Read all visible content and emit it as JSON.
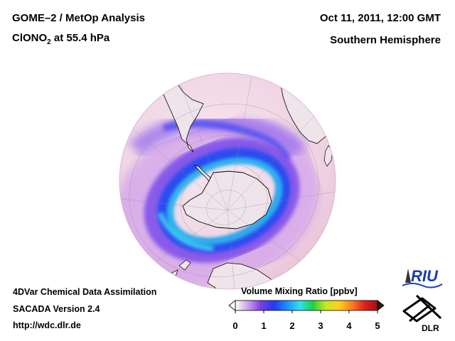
{
  "header": {
    "title_line1": "GOME–2 / MetOp Analysis",
    "species_prefix": "ClONO",
    "species_sub": "2",
    "species_suffix": " at 55.4 hPa",
    "datetime": "Oct 11, 2011, 12:00 GMT",
    "region": "Southern Hemisphere"
  },
  "footer": {
    "line1": "4DVar Chemical Data Assimilation",
    "line2": "SACADA Version 2.4",
    "line3": "http://wdc.dlr.de"
  },
  "colorbar": {
    "title": "Volume Mixing Ratio [ppbv]",
    "ticks": [
      "0",
      "1",
      "2",
      "3",
      "4",
      "5"
    ],
    "min": 0,
    "max": 5,
    "colors": [
      "#ffffff",
      "#c8a0e6",
      "#7a3ce8",
      "#1e3cf0",
      "#1e90ff",
      "#30e0f0",
      "#20d040",
      "#c8e820",
      "#ffd020",
      "#ff8020",
      "#e02020",
      "#a01010"
    ]
  },
  "logos": {
    "riu": "RIU",
    "dlr": "DLR"
  },
  "colors": {
    "globe_background": "#f3dde8",
    "vortex_blue": "#2a4cf0",
    "vortex_cyan": "#28b8f0",
    "land_fill": "#efe4ea",
    "coastline": "#000000"
  }
}
